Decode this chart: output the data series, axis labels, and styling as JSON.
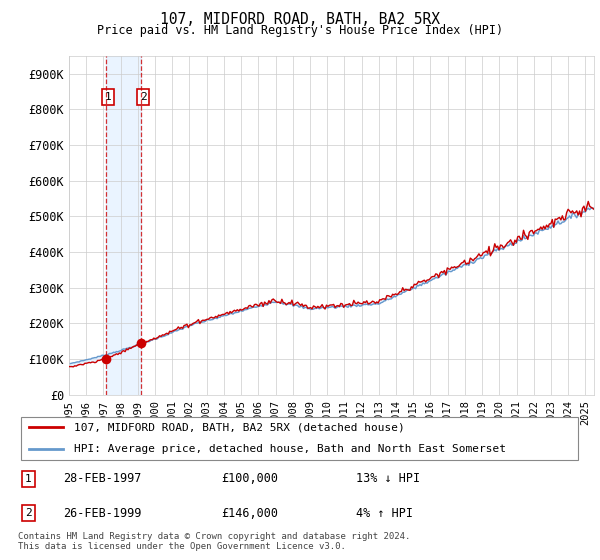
{
  "title": "107, MIDFORD ROAD, BATH, BA2 5RX",
  "subtitle": "Price paid vs. HM Land Registry's House Price Index (HPI)",
  "ylim": [
    0,
    950000
  ],
  "yticks": [
    0,
    100000,
    200000,
    300000,
    400000,
    500000,
    600000,
    700000,
    800000,
    900000
  ],
  "ytick_labels": [
    "£0",
    "£100K",
    "£200K",
    "£300K",
    "£400K",
    "£500K",
    "£600K",
    "£700K",
    "£800K",
    "£900K"
  ],
  "sale1_date": 1997.16,
  "sale1_price": 100000,
  "sale2_date": 1999.16,
  "sale2_price": 146000,
  "line1_label": "107, MIDFORD ROAD, BATH, BA2 5RX (detached house)",
  "line2_label": "HPI: Average price, detached house, Bath and North East Somerset",
  "table_rows": [
    {
      "num": "1",
      "date": "28-FEB-1997",
      "price": "£100,000",
      "hpi": "13% ↓ HPI"
    },
    {
      "num": "2",
      "date": "26-FEB-1999",
      "price": "£146,000",
      "hpi": "4% ↑ HPI"
    }
  ],
  "footer": "Contains HM Land Registry data © Crown copyright and database right 2024.\nThis data is licensed under the Open Government Licence v3.0.",
  "line1_color": "#cc0000",
  "line2_color": "#6699cc",
  "shade_color": "#ddeeff",
  "vline_color": "#cc0000",
  "background_color": "#ffffff",
  "grid_color": "#cccccc",
  "xlim_start": 1995,
  "xlim_end": 2025.5
}
